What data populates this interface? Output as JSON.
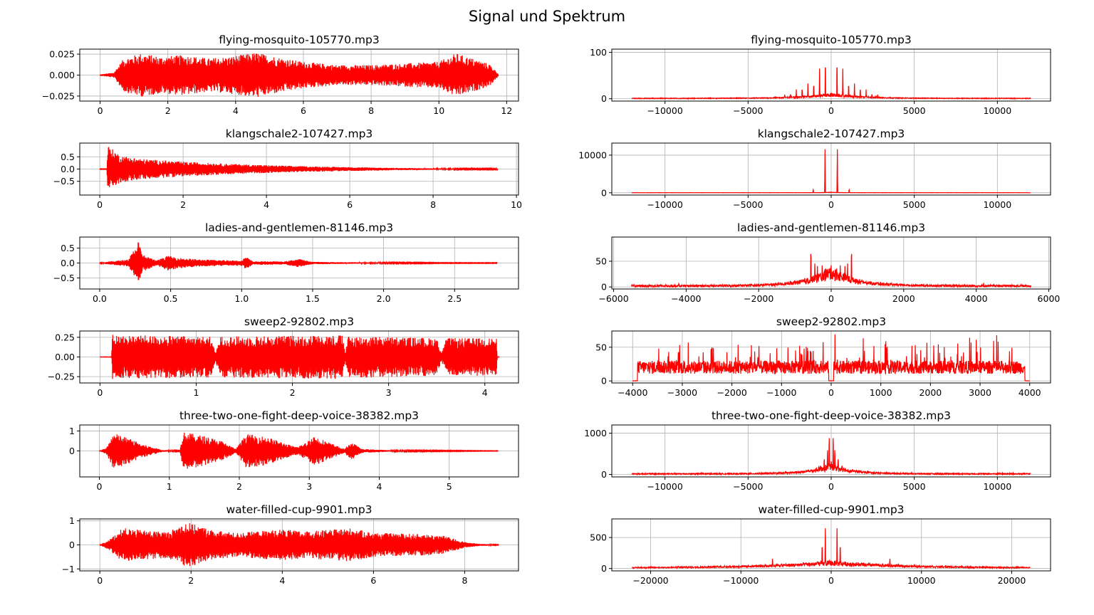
{
  "figure": {
    "title": "Signal und Spektrum",
    "line_color": "#ff0000"
  },
  "chart_data": [
    {
      "id": "sig1",
      "type": "line",
      "kind": "signal",
      "title": "flying-mosquito-105770.mp3",
      "xlim": [
        -0.6,
        12.35
      ],
      "ylim": [
        -0.031,
        0.031
      ],
      "xticks": [
        0,
        2,
        4,
        6,
        8,
        10,
        12
      ],
      "xtick_labels": [
        "0",
        "2",
        "4",
        "6",
        "8",
        "10",
        "12"
      ],
      "yticks": [
        -0.025,
        0,
        0.025
      ],
      "ytick_labels": [
        "−0.025",
        "0.000",
        "0.025"
      ],
      "grid": true,
      "envelope": [
        [
          0,
          0.0008
        ],
        [
          0.4,
          0.003
        ],
        [
          0.7,
          0.02
        ],
        [
          1.2,
          0.026
        ],
        [
          1.8,
          0.022
        ],
        [
          2.5,
          0.024
        ],
        [
          3.2,
          0.02
        ],
        [
          3.8,
          0.022
        ],
        [
          4.6,
          0.027
        ],
        [
          5.3,
          0.021
        ],
        [
          6,
          0.016
        ],
        [
          7,
          0.012
        ],
        [
          8,
          0.012
        ],
        [
          9,
          0.014
        ],
        [
          10,
          0.016
        ],
        [
          10.5,
          0.026
        ],
        [
          11,
          0.02
        ],
        [
          11.5,
          0.013
        ],
        [
          11.75,
          0.002
        ]
      ]
    },
    {
      "id": "spec1",
      "type": "line",
      "kind": "spectrum",
      "title": "flying-mosquito-105770.mp3",
      "xlim": [
        -13200,
        13200
      ],
      "ylim": [
        -5,
        107
      ],
      "xticks": [
        -10000,
        -5000,
        0,
        5000,
        10000
      ],
      "xtick_labels": [
        "−10000",
        "−5000",
        "0",
        "5000",
        "10000"
      ],
      "yticks": [
        0,
        100
      ],
      "ytick_labels": [
        "0",
        "100"
      ],
      "grid": true,
      "x_extent": 12000,
      "noise": 1.5,
      "spread": 2000,
      "spread_level": 12,
      "peaks": [
        [
          350,
          100
        ],
        [
          700,
          65
        ],
        [
          1050,
          40
        ],
        [
          1400,
          33
        ],
        [
          1750,
          28
        ],
        [
          2100,
          20
        ],
        [
          2450,
          13
        ],
        [
          2800,
          9
        ]
      ]
    },
    {
      "id": "sig2",
      "type": "line",
      "kind": "signal",
      "title": "klangschale2-107427.mp3",
      "xlim": [
        -0.48,
        10.05
      ],
      "ylim": [
        -1.06,
        1.06
      ],
      "xticks": [
        0,
        2,
        4,
        6,
        8,
        10
      ],
      "xtick_labels": [
        "0",
        "2",
        "4",
        "6",
        "8",
        "10"
      ],
      "yticks": [
        -0.5,
        0,
        0.5
      ],
      "ytick_labels": [
        "−0.5",
        "0.0",
        "0.5"
      ],
      "grid": true,
      "envelope": [
        [
          0,
          0.01
        ],
        [
          0.17,
          0.01
        ],
        [
          0.19,
          0.97
        ],
        [
          0.5,
          0.55
        ],
        [
          1,
          0.42
        ],
        [
          2,
          0.3
        ],
        [
          3,
          0.22
        ],
        [
          4,
          0.16
        ],
        [
          5,
          0.11
        ],
        [
          6,
          0.08
        ],
        [
          7,
          0.05
        ],
        [
          8,
          0.03
        ],
        [
          9,
          0.02
        ],
        [
          9.55,
          0.02
        ]
      ]
    },
    {
      "id": "spec2",
      "type": "line",
      "kind": "spectrum",
      "title": "klangschale2-107427.mp3",
      "xlim": [
        -13200,
        13200
      ],
      "ylim": [
        -600,
        13200
      ],
      "xticks": [
        -10000,
        -5000,
        0,
        5000,
        10000
      ],
      "xtick_labels": [
        "−10000",
        "−5000",
        "0",
        "5000",
        "10000"
      ],
      "yticks": [
        0,
        10000
      ],
      "ytick_labels": [
        "0",
        "10000"
      ],
      "grid": true,
      "x_extent": 12000,
      "noise": 40,
      "spread": 500,
      "spread_level": 150,
      "peaks": [
        [
          370,
          12400
        ],
        [
          1080,
          1100
        ]
      ]
    },
    {
      "id": "sig3",
      "type": "line",
      "kind": "signal",
      "title": "ladies-and-gentlemen-81146.mp3",
      "xlim": [
        -0.14,
        2.95
      ],
      "ylim": [
        -0.87,
        0.87
      ],
      "xticks": [
        0,
        0.5,
        1,
        1.5,
        2,
        2.5
      ],
      "xtick_labels": [
        "0.0",
        "0.5",
        "1.0",
        "1.5",
        "2.0",
        "2.5"
      ],
      "yticks": [
        -0.5,
        0,
        0.5
      ],
      "ytick_labels": [
        "−0.5",
        "0.0",
        "0.5"
      ],
      "grid": true,
      "envelope": [
        [
          0,
          0.01
        ],
        [
          0.05,
          0.04
        ],
        [
          0.2,
          0.12
        ],
        [
          0.25,
          0.5
        ],
        [
          0.27,
          0.78
        ],
        [
          0.3,
          0.3
        ],
        [
          0.4,
          0.08
        ],
        [
          0.48,
          0.25
        ],
        [
          0.55,
          0.18
        ],
        [
          0.7,
          0.12
        ],
        [
          0.85,
          0.1
        ],
        [
          1,
          0.09
        ],
        [
          1.03,
          0.22
        ],
        [
          1.08,
          0.05
        ],
        [
          1.15,
          0.06
        ],
        [
          1.3,
          0.05
        ],
        [
          1.4,
          0.14
        ],
        [
          1.5,
          0.04
        ],
        [
          1.7,
          0.03
        ],
        [
          2,
          0.02
        ],
        [
          2.5,
          0.01
        ],
        [
          2.8,
          0.01
        ]
      ]
    },
    {
      "id": "spec3",
      "type": "line",
      "kind": "spectrum",
      "title": "ladies-and-gentlemen-81146.mp3",
      "xlim": [
        -6050,
        6050
      ],
      "ylim": [
        -4,
        97
      ],
      "xticks": [
        -6000,
        -4000,
        -2000,
        0,
        2000,
        4000,
        6000
      ],
      "xtick_labels": [
        "−6000",
        "−4000",
        "−2000",
        "0",
        "2000",
        "4000",
        "6000"
      ],
      "yticks": [
        0,
        50
      ],
      "ytick_labels": [
        "0",
        "50"
      ],
      "grid": true,
      "x_extent": 5512,
      "noise": 4,
      "spread": 700,
      "spread_level": 40,
      "peaks": [
        [
          560,
          92
        ],
        [
          450,
          55
        ],
        [
          250,
          48
        ],
        [
          150,
          38
        ],
        [
          380,
          42
        ],
        [
          4200,
          9
        ],
        [
          5000,
          5
        ],
        [
          3000,
          4
        ],
        [
          2500,
          6
        ]
      ]
    },
    {
      "id": "sig4",
      "type": "line",
      "kind": "signal",
      "title": "sweep2-92802.mp3",
      "xlim": [
        -0.21,
        4.35
      ],
      "ylim": [
        -0.33,
        0.33
      ],
      "xticks": [
        0,
        1,
        2,
        3,
        4
      ],
      "xtick_labels": [
        "0",
        "1",
        "2",
        "3",
        "4"
      ],
      "yticks": [
        -0.25,
        0,
        0.25
      ],
      "ytick_labels": [
        "−0.25",
        "0.00",
        "0.25"
      ],
      "grid": true,
      "envelope": [
        [
          0,
          0.002
        ],
        [
          0.12,
          0.002
        ],
        [
          0.13,
          0.28
        ],
        [
          1.15,
          0.26
        ],
        [
          1.2,
          0.05
        ],
        [
          1.25,
          0.26
        ],
        [
          2.52,
          0.28
        ],
        [
          2.55,
          0.05
        ],
        [
          2.58,
          0.27
        ],
        [
          3.5,
          0.24
        ],
        [
          3.55,
          0.05
        ],
        [
          3.6,
          0.24
        ],
        [
          4.12,
          0.24
        ],
        [
          4.13,
          0.002
        ],
        [
          4.15,
          0.002
        ]
      ]
    },
    {
      "id": "spec4",
      "type": "line",
      "kind": "spectrum",
      "title": "sweep2-92802.mp3",
      "xlim": [
        -4420,
        4420
      ],
      "ylim": [
        -3,
        74
      ],
      "xticks": [
        -4000,
        -3000,
        -2000,
        -1000,
        0,
        1000,
        2000,
        3000,
        4000
      ],
      "xtick_labels": [
        "−4000",
        "−3000",
        "−2000",
        "−1000",
        "0",
        "1000",
        "2000",
        "3000",
        "4000"
      ],
      "yticks": [
        0,
        50
      ],
      "ytick_labels": [
        "0",
        "50"
      ],
      "grid": true,
      "x_extent": 4000,
      "band": [
        50,
        3900
      ],
      "band_level": [
        30,
        70
      ]
    },
    {
      "id": "sig5",
      "type": "line",
      "kind": "signal",
      "title": "three-two-one-fight-deep-voice-38382.mp3",
      "xlim": [
        -0.28,
        5.99
      ],
      "ylim": [
        -1.3,
        1.3
      ],
      "xticks": [
        0,
        1,
        2,
        3,
        4,
        5
      ],
      "xtick_labels": [
        "0",
        "1",
        "2",
        "3",
        "4",
        "5"
      ],
      "yticks": [
        0,
        1
      ],
      "ytick_labels": [
        "0",
        "1"
      ],
      "grid": true,
      "envelope": [
        [
          0,
          0.01
        ],
        [
          0.1,
          0.15
        ],
        [
          0.2,
          0.9
        ],
        [
          0.45,
          0.6
        ],
        [
          0.6,
          0.35
        ],
        [
          0.9,
          0.05
        ],
        [
          1.15,
          0.02
        ],
        [
          1.2,
          0.95
        ],
        [
          1.5,
          0.75
        ],
        [
          1.75,
          0.5
        ],
        [
          1.95,
          0.1
        ],
        [
          2.1,
          0.85
        ],
        [
          2.4,
          0.7
        ],
        [
          2.8,
          0.2
        ],
        [
          2.95,
          0.4
        ],
        [
          3.05,
          0.78
        ],
        [
          3.3,
          0.4
        ],
        [
          3.5,
          0.1
        ],
        [
          3.6,
          0.45
        ],
        [
          3.75,
          0.1
        ],
        [
          4.2,
          0.03
        ],
        [
          5,
          0.02
        ],
        [
          5.7,
          0.01
        ]
      ]
    },
    {
      "id": "spec5",
      "type": "line",
      "kind": "spectrum",
      "title": "three-two-one-fight-deep-voice-38382.mp3",
      "xlim": [
        -13200,
        13200
      ],
      "ylim": [
        -60,
        1200
      ],
      "xticks": [
        -10000,
        -5000,
        0,
        5000,
        10000
      ],
      "xtick_labels": [
        "−10000",
        "−5000",
        "0",
        "5000",
        "10000"
      ],
      "yticks": [
        0,
        1000
      ],
      "ytick_labels": [
        "0",
        "1000"
      ],
      "grid": true,
      "x_extent": 12000,
      "noise": 30,
      "spread": 1300,
      "spread_level": 280,
      "peaks": [
        [
          120,
          1200
        ],
        [
          220,
          800
        ],
        [
          420,
          500
        ],
        [
          650,
          300
        ]
      ]
    },
    {
      "id": "sig6",
      "type": "line",
      "kind": "signal",
      "title": "water-filled-cup-9901.mp3",
      "xlim": [
        -0.44,
        9.18
      ],
      "ylim": [
        -1.08,
        1.08
      ],
      "xticks": [
        0,
        2,
        4,
        6,
        8
      ],
      "xtick_labels": [
        "0",
        "2",
        "4",
        "6",
        "8"
      ],
      "yticks": [
        -1,
        0,
        1
      ],
      "ytick_labels": [
        "−1",
        "0",
        "1"
      ],
      "grid": true,
      "envelope": [
        [
          0,
          0.01
        ],
        [
          0.2,
          0.2
        ],
        [
          0.5,
          0.7
        ],
        [
          1,
          0.6
        ],
        [
          1.5,
          0.55
        ],
        [
          1.9,
          0.95
        ],
        [
          2.5,
          0.6
        ],
        [
          3,
          0.5
        ],
        [
          4,
          0.65
        ],
        [
          4.5,
          0.55
        ],
        [
          5.5,
          0.7
        ],
        [
          6,
          0.5
        ],
        [
          7,
          0.45
        ],
        [
          7.5,
          0.4
        ],
        [
          8,
          0.12
        ],
        [
          8.3,
          0.05
        ],
        [
          8.75,
          0.01
        ]
      ]
    },
    {
      "id": "spec6",
      "type": "line",
      "kind": "spectrum",
      "title": "water-filled-cup-9901.mp3",
      "xlim": [
        -24300,
        24300
      ],
      "ylim": [
        -38,
        800
      ],
      "xticks": [
        -20000,
        -10000,
        0,
        10000,
        20000
      ],
      "xtick_labels": [
        "−20000",
        "−10000",
        "0",
        "10000",
        "20000"
      ],
      "yticks": [
        0,
        500
      ],
      "ytick_labels": [
        "0",
        "500"
      ],
      "grid": true,
      "x_extent": 22050,
      "noise": 15,
      "spread": 9000,
      "spread_level": 120,
      "peaks": [
        [
          650,
          760
        ],
        [
          1000,
          500
        ],
        [
          1500,
          150
        ],
        [
          6500,
          200
        ],
        [
          5000,
          100
        ]
      ]
    }
  ]
}
